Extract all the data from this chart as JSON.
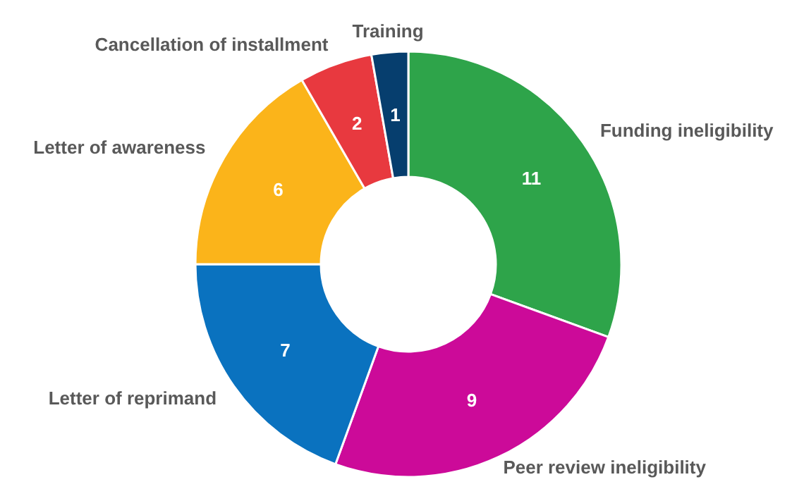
{
  "chart_data": {
    "type": "donut",
    "categories": [
      "Funding ineligibility",
      "Peer review ineligibility",
      "Letter of reprimand",
      "Letter of awareness",
      "Cancellation of installment",
      "Training"
    ],
    "values": [
      11,
      9,
      7,
      6,
      2,
      1
    ],
    "colors": [
      "#2ea44a",
      "#cc0a99",
      "#0a72bf",
      "#fbb41a",
      "#e8393f",
      "#063e6e"
    ],
    "data_labels": true
  }
}
